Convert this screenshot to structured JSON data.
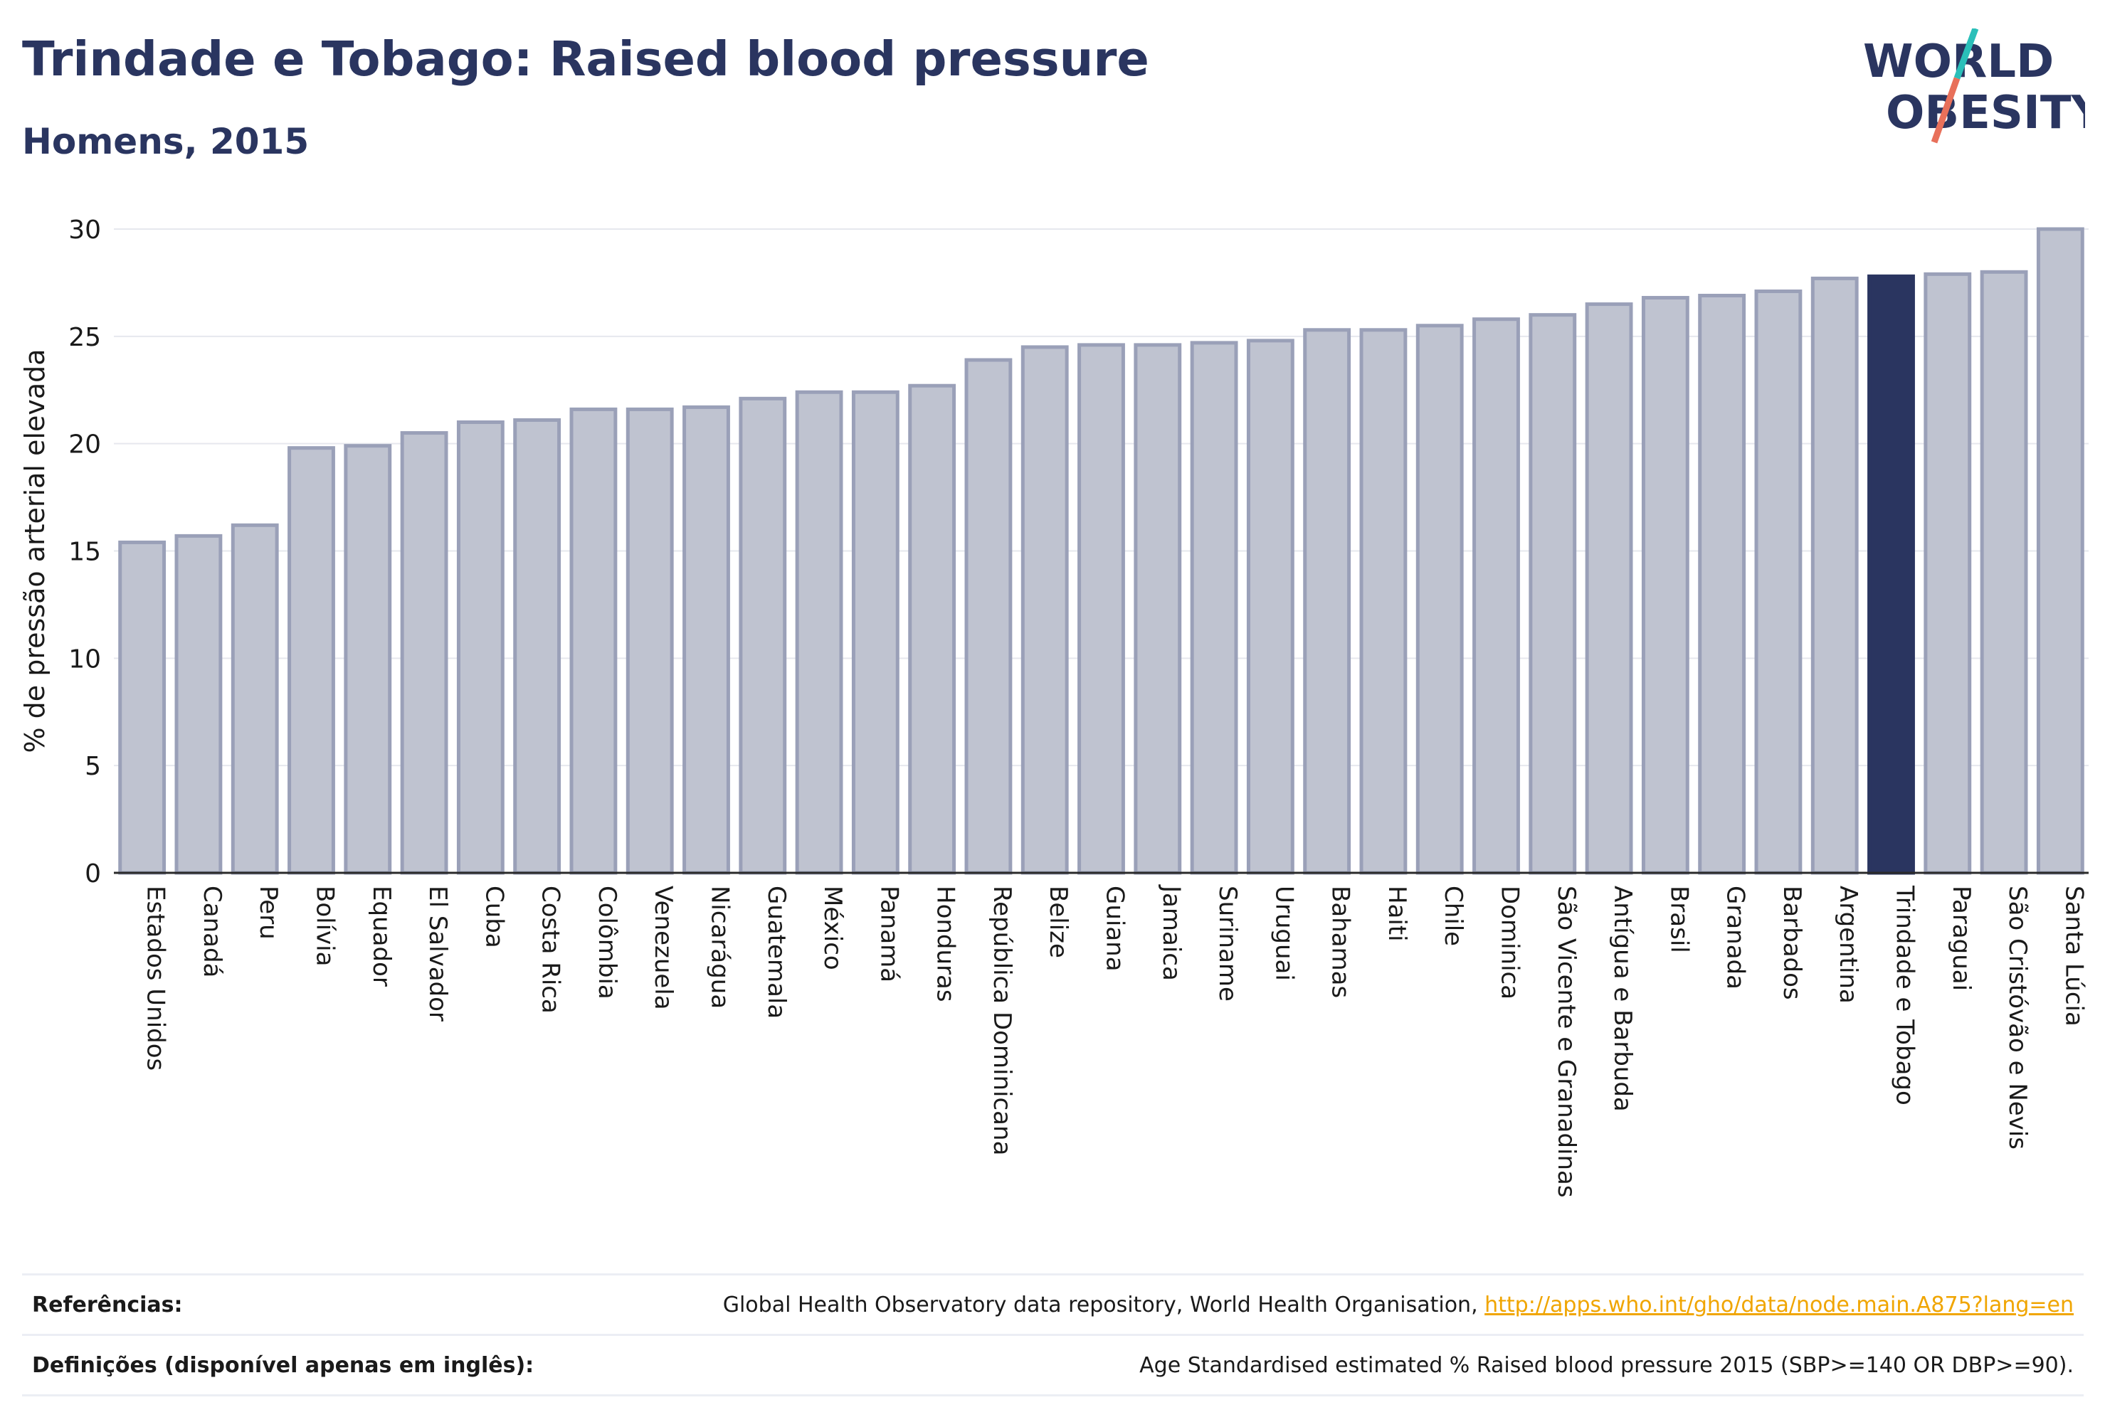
{
  "header": {
    "title": "Trindade e Tobago: Raised blood pressure",
    "subtitle": "Homens, 2015"
  },
  "logo": {
    "line1": "WORLD",
    "line2": "OBESITY",
    "colors": {
      "text": "#2a3560",
      "slash_teal": "#2bbfb9",
      "slash_coral": "#e8705a"
    }
  },
  "colors": {
    "bar_default": "#bfc3d0",
    "bar_default_stroke": "#9aa0b8",
    "bar_highlight": "#2a3560",
    "gridline": "#e6e8ee",
    "axis": "#2a2a2a"
  },
  "chart_data": {
    "type": "bar",
    "title": "Trindade e Tobago: Raised blood pressure",
    "subtitle": "Homens, 2015",
    "xlabel": "",
    "ylabel": "% de pressão arterial elevada",
    "ylim": [
      0,
      30
    ],
    "yticks": [
      0,
      5,
      10,
      15,
      20,
      25,
      30
    ],
    "grid": true,
    "highlight": "Trindade e Tobago",
    "categories": [
      "Estados Unidos",
      "Canadá",
      "Peru",
      "Bolívia",
      "Equador",
      "El Salvador",
      "Cuba",
      "Costa Rica",
      "Colômbia",
      "Venezuela",
      "Nicarágua",
      "Guatemala",
      "México",
      "Panamá",
      "Honduras",
      "República Dominicana",
      "Belize",
      "Guiana",
      "Jamaica",
      "Suriname",
      "Uruguai",
      "Bahamas",
      "Haiti",
      "Chile",
      "Dominica",
      "São Vicente e Granadinas",
      "Antígua e Barbuda",
      "Brasil",
      "Granada",
      "Barbados",
      "Argentina",
      "Trindade e Tobago",
      "Paraguai",
      "São Cristóvão e Nevis",
      "Santa Lúcia"
    ],
    "values": [
      15.4,
      15.7,
      16.2,
      19.8,
      19.9,
      20.5,
      21.0,
      21.1,
      21.6,
      21.6,
      21.7,
      22.1,
      22.4,
      22.4,
      22.7,
      23.9,
      24.5,
      24.6,
      24.6,
      24.7,
      24.8,
      25.3,
      25.3,
      25.5,
      25.8,
      26.0,
      26.5,
      26.8,
      26.9,
      27.1,
      27.7,
      27.8,
      27.9,
      28.0,
      30.0
    ]
  },
  "references": {
    "label": "Referências:",
    "text": "Global Health Observatory data repository, World Health Organisation, ",
    "link": "http://apps.who.int/gho/data/node.main.A875?lang=en"
  },
  "definitions": {
    "label": "Definições (disponível apenas em inglês):",
    "text": "Age Standardised estimated % Raised blood pressure 2015 (SBP>=140 OR DBP>=90)."
  }
}
